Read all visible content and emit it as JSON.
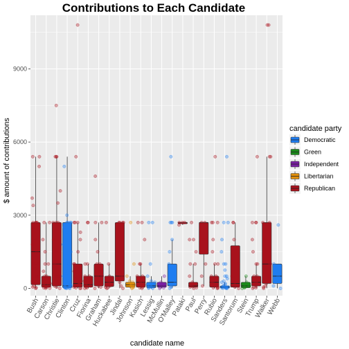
{
  "chart_data": {
    "type": "box",
    "title": "Contributions to Each Candidate",
    "xlabel": "candidate name",
    "ylabel": "$ amount of contributions",
    "ylim": [
      -300,
      11200
    ],
    "yticks": [
      0,
      3000,
      6000,
      9000
    ],
    "ytick_labels": [
      "0",
      "3000",
      "6000",
      "9000"
    ],
    "grid": true,
    "legend": {
      "title": "candidate party",
      "position": "right",
      "entries": [
        {
          "party": "Democratic",
          "color": "#1f7df0"
        },
        {
          "party": "Green",
          "color": "#1a8a1a"
        },
        {
          "party": "Independent",
          "color": "#7a1fa2"
        },
        {
          "party": "Libertarian",
          "color": "#e08e0b"
        },
        {
          "party": "Republican",
          "color": "#a8121c"
        }
      ]
    },
    "categories": [
      {
        "name": "Bush",
        "party": "Republican",
        "min": 0,
        "q1": 150,
        "median": 1500,
        "q3": 2700,
        "max": 5400,
        "points": [
          0,
          25,
          50,
          100,
          200,
          250,
          300,
          500,
          500,
          800,
          1000,
          1000,
          1500,
          1800,
          2000,
          2500,
          2700,
          2700,
          2700,
          2700,
          3400,
          3700,
          5000,
          5400,
          5400
        ]
      },
      {
        "name": "Carson",
        "party": "Republican",
        "min": 0,
        "q1": 50,
        "median": 150,
        "q3": 500,
        "max": 2700,
        "points": [
          0,
          10,
          25,
          50,
          50,
          100,
          100,
          150,
          200,
          250,
          300,
          500,
          500,
          700,
          1000,
          1000,
          1500,
          2000,
          2700,
          2700
        ]
      },
      {
        "name": "Christie",
        "party": "Republican",
        "min": 0,
        "q1": 100,
        "median": 1000,
        "q3": 2700,
        "max": 5400,
        "points": [
          0,
          50,
          100,
          250,
          500,
          500,
          1000,
          1000,
          1000,
          1500,
          2000,
          2700,
          2700,
          2700,
          3500,
          4000,
          5400,
          5400,
          5400,
          7500
        ]
      },
      {
        "name": "Clinton",
        "party": "Democratic",
        "min": 0,
        "q1": 25,
        "median": 100,
        "q3": 2700,
        "max": 5400,
        "points": [
          0,
          5,
          10,
          15,
          25,
          25,
          50,
          50,
          75,
          100,
          100,
          150,
          200,
          250,
          300,
          400,
          500,
          500,
          600,
          700,
          800,
          1000,
          1000,
          1200,
          1500,
          1800,
          2000,
          2000,
          2300,
          2500,
          2700,
          2700,
          2700,
          2700,
          3000,
          5000
        ]
      },
      {
        "name": "Cruz",
        "party": "Republican",
        "min": 0,
        "q1": 50,
        "median": 200,
        "q3": 1000,
        "max": 2700,
        "points": [
          0,
          10,
          25,
          50,
          100,
          150,
          200,
          250,
          300,
          400,
          500,
          500,
          700,
          1000,
          1000,
          1500,
          2000,
          2300,
          2700,
          2700,
          2700,
          5400,
          10800
        ]
      },
      {
        "name": "Fiorina",
        "party": "Republican",
        "min": 0,
        "q1": 50,
        "median": 150,
        "q3": 500,
        "max": 1000,
        "points": [
          0,
          25,
          50,
          100,
          100,
          150,
          250,
          300,
          500,
          500,
          1000,
          1000,
          2700,
          2700
        ]
      },
      {
        "name": "Graham",
        "party": "Republican",
        "min": 0,
        "q1": 100,
        "median": 500,
        "q3": 1000,
        "max": 2700,
        "points": [
          0,
          50,
          100,
          250,
          500,
          500,
          750,
          1000,
          1000,
          1500,
          2000,
          2700,
          2700,
          4600
        ]
      },
      {
        "name": "Huckabee",
        "party": "Republican",
        "min": 0,
        "q1": 75,
        "median": 250,
        "q3": 500,
        "max": 1000,
        "points": [
          0,
          25,
          50,
          100,
          150,
          250,
          300,
          400,
          500,
          1000,
          2700
        ]
      },
      {
        "name": "Jindal",
        "party": "Republican",
        "min": 0,
        "q1": 300,
        "median": 500,
        "q3": 2700,
        "max": 2700,
        "points": [
          0,
          100,
          250,
          500,
          500,
          1000,
          2700,
          2700,
          2700,
          2700
        ]
      },
      {
        "name": "Johnson",
        "party": "Libertarian",
        "min": 0,
        "q1": 50,
        "median": 150,
        "q3": 250,
        "max": 500,
        "points": [
          0,
          25,
          50,
          100,
          150,
          200,
          250,
          300,
          500,
          1000,
          2700
        ]
      },
      {
        "name": "Kasich",
        "party": "Republican",
        "min": 0,
        "q1": 50,
        "median": 250,
        "q3": 500,
        "max": 1000,
        "points": [
          0,
          25,
          50,
          100,
          200,
          250,
          300,
          500,
          500,
          1000,
          1000,
          2000,
          2700,
          2700
        ]
      },
      {
        "name": "Lessig",
        "party": "Democratic",
        "min": 0,
        "q1": 25,
        "median": 100,
        "q3": 250,
        "max": 500,
        "points": [
          0,
          10,
          25,
          50,
          100,
          150,
          250,
          300,
          500,
          1000,
          2700,
          2700
        ]
      },
      {
        "name": "McMullin",
        "party": "Independent",
        "min": 0,
        "q1": 50,
        "median": 100,
        "q3": 250,
        "max": 500,
        "points": [
          0,
          25,
          50,
          100,
          150,
          250,
          500
        ]
      },
      {
        "name": "O'Malley",
        "party": "Democratic",
        "min": 0,
        "q1": 100,
        "median": 250,
        "q3": 1000,
        "max": 2000,
        "points": [
          0,
          50,
          100,
          250,
          500,
          1000,
          1500,
          2000,
          2700,
          2700,
          2700,
          5400
        ]
      },
      {
        "name": "Pataki",
        "party": "Republican",
        "min": 2600,
        "q1": 2650,
        "median": 2700,
        "q3": 2700,
        "max": 2700,
        "points": [
          2600,
          2700,
          2700,
          2700
        ]
      },
      {
        "name": "Paul",
        "party": "Republican",
        "min": 0,
        "q1": 50,
        "median": 100,
        "q3": 250,
        "max": 1000,
        "points": [
          0,
          25,
          50,
          100,
          100,
          250,
          500,
          1000,
          1000,
          1500,
          2000,
          2000,
          2700
        ]
      },
      {
        "name": "Perry",
        "party": "Republican",
        "min": 100,
        "q1": 1400,
        "median": 2700,
        "q3": 2700,
        "max": 2700,
        "points": [
          100,
          500,
          1000,
          2000,
          2700,
          2700
        ]
      },
      {
        "name": "Rubio",
        "party": "Republican",
        "min": 0,
        "q1": 50,
        "median": 250,
        "q3": 500,
        "max": 1000,
        "points": [
          0,
          10,
          25,
          50,
          100,
          200,
          250,
          300,
          500,
          500,
          1000,
          1000,
          1500,
          2000,
          2700,
          2700,
          2700,
          5400
        ]
      },
      {
        "name": "Sanders",
        "party": "Democratic",
        "min": 0,
        "q1": 15,
        "median": 50,
        "q3": 100,
        "max": 250,
        "points": [
          0,
          5,
          10,
          15,
          25,
          27,
          50,
          50,
          100,
          100,
          150,
          200,
          250,
          300,
          400,
          500,
          500,
          750,
          1000,
          1000,
          1500,
          2000,
          2700,
          2700,
          5400
        ]
      },
      {
        "name": "Santorum",
        "party": "Republican",
        "min": 0,
        "q1": 50,
        "median": 200,
        "q3": 1750,
        "max": 2700,
        "points": [
          0,
          50,
          100,
          250,
          500,
          1000,
          2000,
          2700,
          2700
        ]
      },
      {
        "name": "Stein",
        "party": "Green",
        "min": 0,
        "q1": 25,
        "median": 100,
        "q3": 250,
        "max": 500,
        "points": [
          0,
          25,
          50,
          100,
          150,
          250,
          500
        ]
      },
      {
        "name": "Trump",
        "party": "Republican",
        "min": 0,
        "q1": 100,
        "median": 250,
        "q3": 500,
        "max": 1000,
        "points": [
          0,
          25,
          50,
          100,
          150,
          200,
          250,
          300,
          500,
          500,
          1000,
          1000,
          1500,
          2000,
          2700,
          2700,
          2700,
          5400
        ]
      },
      {
        "name": "Walker",
        "party": "Republican",
        "min": 0,
        "q1": 200,
        "median": 1000,
        "q3": 2700,
        "max": 5400,
        "points": [
          0,
          50,
          100,
          200,
          500,
          1000,
          1000,
          2000,
          2700,
          2700,
          5400,
          5400,
          10800,
          10800
        ]
      },
      {
        "name": "Webb",
        "party": "Democratic",
        "min": 0,
        "q1": 200,
        "median": 500,
        "q3": 1000,
        "max": 1000,
        "points": [
          0,
          100,
          250,
          500,
          1000,
          2600
        ]
      }
    ]
  }
}
